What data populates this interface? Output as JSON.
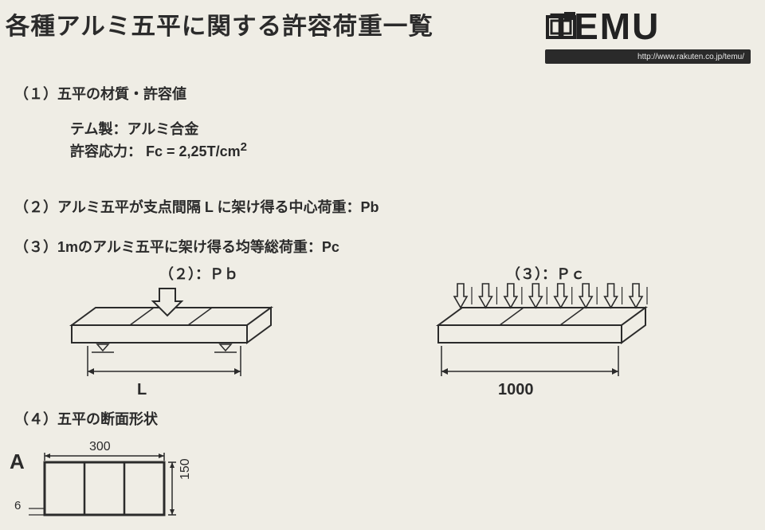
{
  "title": "各種アルミ五平に関する許容荷重一覧",
  "logo": {
    "text": "TEMU",
    "url": "http://www.rakuten.co.jp/temu/",
    "icon_name": "temu-logo-icon"
  },
  "sections": {
    "s1": {
      "label": "（１）五平の材質・許容値",
      "line1": "テム製：アルミ合金",
      "line2_prefix": "許容応力：",
      "formula": "Fc = 2,25T/cm",
      "exponent": "2"
    },
    "s2": {
      "label": "（２）アルミ五平が支点間隔 L に架け得る中心荷重：Pb"
    },
    "s3": {
      "label": "（３）1mのアルミ五平に架け得る均等総荷重：Pc"
    },
    "s4": {
      "label": "（４）五平の断面形状"
    }
  },
  "diagrams": {
    "pb": {
      "type": "infographic",
      "label": "（２）：Ｐｂ",
      "span_label": "L",
      "stroke": "#2b2b2b",
      "fill": "#efede5",
      "line_width": 2
    },
    "pc": {
      "type": "infographic",
      "label": "（３）：Ｐｃ",
      "span_label": "1000",
      "arrow_count": 8,
      "stroke": "#2b2b2b",
      "fill": "#efede5",
      "line_width": 2
    },
    "crosssection": {
      "type": "infographic",
      "label": "A",
      "width_mm": 300,
      "height_mm": 150,
      "wall_mm": 6,
      "cells": 3,
      "stroke": "#2b2b2b",
      "line_width": 2
    }
  },
  "style": {
    "background_color": "#efede5",
    "text_color": "#2b2b2b",
    "title_fontsize": 30,
    "section_fontsize": 18,
    "label_fontsize": 18
  }
}
